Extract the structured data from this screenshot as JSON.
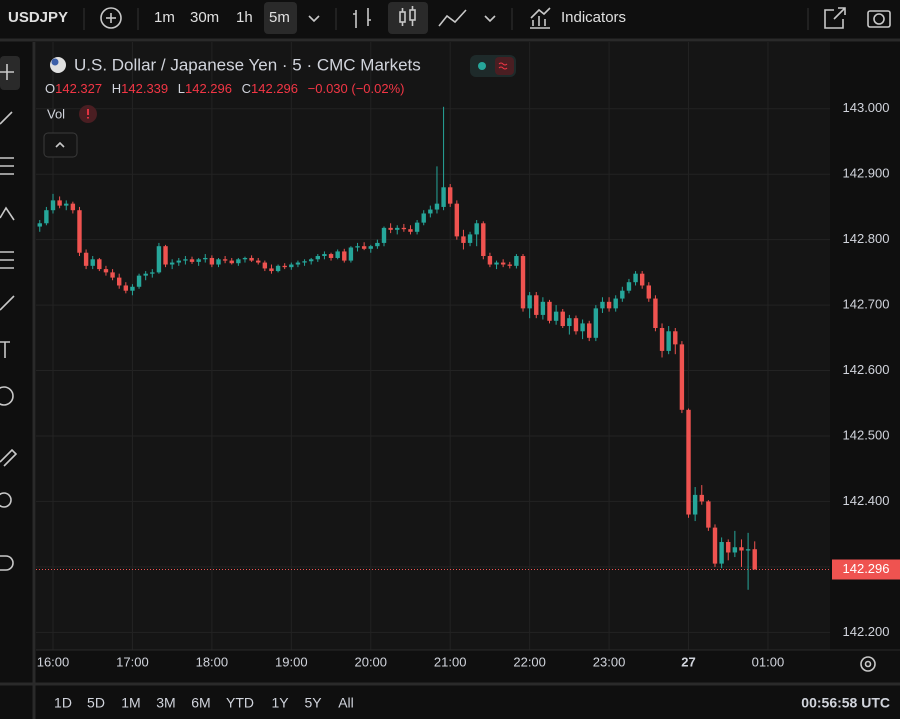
{
  "toolbar": {
    "symbol": "USDJPY",
    "intervals": [
      "1m",
      "30m",
      "1h",
      "5m"
    ],
    "indicators": "Indicators"
  },
  "legend": {
    "title": "U.S. Dollar / Japanese Yen · 5 · CMC Markets",
    "ohlc_labels": [
      "O",
      "H",
      "L",
      "C"
    ],
    "change": "−0.030 (−0.02%)",
    "volume": "Vol"
  },
  "ranges": [
    "1D",
    "5D",
    "1M",
    "3M",
    "6M",
    "YTD",
    "1Y",
    "5Y",
    "All"
  ],
  "clock": "00:56:58 UTC",
  "chart_data": {
    "type": "candlestick",
    "up_color": "#26a69a",
    "down_color": "#ef5350",
    "grid": true,
    "ylim": [
      142.173,
      143.102
    ],
    "yticks": [
      {
        "value": 142.2,
        "label": "142.200"
      },
      {
        "value": 142.3,
        "label": "142.300"
      },
      {
        "value": 142.4,
        "label": "142.400"
      },
      {
        "value": 142.5,
        "label": "142.500"
      },
      {
        "value": 142.6,
        "label": "142.600"
      },
      {
        "value": 142.7,
        "label": "142.700"
      },
      {
        "value": 142.8,
        "label": "142.800"
      },
      {
        "value": 142.9,
        "label": "142.900"
      },
      {
        "value": 143.0,
        "label": "143.000"
      }
    ],
    "categories": [
      null,
      null,
      "16:00",
      null,
      null,
      null,
      null,
      null,
      null,
      null,
      null,
      null,
      null,
      null,
      "17:00",
      null,
      null,
      null,
      null,
      null,
      null,
      null,
      null,
      null,
      null,
      null,
      "18:00",
      null,
      null,
      null,
      null,
      null,
      null,
      null,
      null,
      null,
      null,
      null,
      "19:00",
      null,
      null,
      null,
      null,
      null,
      null,
      null,
      null,
      null,
      null,
      null,
      "20:00",
      null,
      null,
      null,
      null,
      null,
      null,
      null,
      null,
      null,
      null,
      null,
      "21:00",
      null,
      null,
      null,
      null,
      null,
      null,
      null,
      null,
      null,
      null,
      null,
      "22:00",
      null,
      null,
      null,
      null,
      null,
      null,
      null,
      null,
      null,
      null,
      null,
      "23:00",
      null,
      null,
      null,
      null,
      null,
      null,
      null,
      null,
      null,
      null,
      null,
      "27",
      null,
      null,
      null,
      null,
      null,
      null,
      null,
      null,
      null,
      null,
      null,
      "01:00"
    ],
    "ohlc": [
      [
        142.82,
        142.83,
        142.812,
        142.825
      ],
      [
        142.825,
        142.85,
        142.822,
        142.845
      ],
      [
        142.845,
        142.87,
        142.84,
        142.86
      ],
      [
        142.86,
        142.866,
        142.848,
        142.852
      ],
      [
        142.852,
        142.86,
        142.845,
        142.855
      ],
      [
        142.855,
        142.858,
        142.84,
        142.845
      ],
      [
        142.845,
        142.85,
        142.775,
        142.78
      ],
      [
        142.78,
        142.785,
        142.755,
        142.76
      ],
      [
        142.76,
        142.775,
        142.755,
        142.77
      ],
      [
        142.77,
        142.772,
        142.752,
        142.755
      ],
      [
        142.755,
        142.76,
        142.745,
        142.75
      ],
      [
        142.75,
        142.755,
        142.738,
        142.742
      ],
      [
        142.742,
        142.748,
        142.725,
        142.73
      ],
      [
        142.73,
        142.735,
        142.718,
        142.722
      ],
      [
        142.722,
        142.732,
        142.715,
        142.728
      ],
      [
        142.728,
        142.748,
        142.725,
        142.745
      ],
      [
        142.745,
        142.752,
        142.738,
        142.748
      ],
      [
        142.748,
        142.755,
        142.742,
        142.75
      ],
      [
        142.75,
        142.795,
        142.748,
        142.79
      ],
      [
        142.79,
        142.792,
        142.758,
        142.762
      ],
      [
        142.762,
        142.77,
        142.755,
        142.765
      ],
      [
        142.765,
        142.772,
        142.76,
        142.768
      ],
      [
        142.768,
        142.775,
        142.762,
        142.77
      ],
      [
        142.77,
        142.774,
        142.763,
        142.766
      ],
      [
        142.766,
        142.772,
        142.76,
        142.77
      ],
      [
        142.77,
        142.778,
        142.765,
        142.772
      ],
      [
        142.772,
        142.776,
        142.758,
        142.762
      ],
      [
        142.762,
        142.772,
        142.758,
        142.77
      ],
      [
        142.77,
        142.775,
        142.764,
        142.768
      ],
      [
        142.768,
        142.772,
        142.762,
        142.764
      ],
      [
        142.764,
        142.772,
        142.76,
        142.77
      ],
      [
        142.77,
        142.774,
        142.765,
        142.772
      ],
      [
        142.772,
        142.776,
        142.766,
        142.768
      ],
      [
        142.768,
        142.772,
        142.762,
        142.765
      ],
      [
        142.765,
        142.768,
        142.752,
        142.756
      ],
      [
        142.756,
        142.762,
        142.748,
        142.752
      ],
      [
        142.752,
        142.762,
        142.75,
        142.76
      ],
      [
        142.76,
        142.764,
        142.755,
        142.758
      ],
      [
        142.758,
        142.765,
        142.754,
        142.762
      ],
      [
        142.762,
        142.768,
        142.758,
        142.765
      ],
      [
        142.765,
        142.77,
        142.76,
        142.767
      ],
      [
        142.767,
        142.772,
        142.762,
        142.77
      ],
      [
        142.77,
        142.778,
        142.766,
        142.775
      ],
      [
        142.775,
        142.782,
        142.77,
        142.778
      ],
      [
        142.778,
        142.78,
        142.768,
        142.772
      ],
      [
        142.772,
        142.785,
        142.77,
        142.782
      ],
      [
        142.782,
        142.786,
        142.765,
        142.768
      ],
      [
        142.768,
        142.79,
        142.765,
        142.788
      ],
      [
        142.788,
        142.795,
        142.782,
        142.79
      ],
      [
        142.79,
        142.796,
        142.784,
        142.786
      ],
      [
        142.786,
        142.792,
        142.78,
        142.79
      ],
      [
        142.79,
        142.8,
        142.786,
        142.795
      ],
      [
        142.795,
        142.82,
        142.79,
        142.818
      ],
      [
        142.818,
        142.825,
        142.81,
        142.815
      ],
      [
        142.815,
        142.822,
        142.808,
        142.818
      ],
      [
        142.818,
        142.824,
        142.812,
        142.816
      ],
      [
        142.816,
        142.822,
        142.808,
        142.812
      ],
      [
        142.812,
        142.83,
        142.808,
        142.826
      ],
      [
        142.826,
        142.845,
        142.822,
        142.84
      ],
      [
        142.84,
        142.852,
        142.834,
        142.846
      ],
      [
        142.846,
        142.912,
        142.84,
        142.855
      ],
      [
        142.85,
        143.003,
        142.845,
        142.88
      ],
      [
        142.88,
        142.885,
        142.85,
        142.855
      ],
      [
        142.855,
        142.86,
        142.8,
        142.805
      ],
      [
        142.805,
        142.815,
        142.785,
        142.795
      ],
      [
        142.795,
        142.812,
        142.79,
        142.808
      ],
      [
        142.808,
        142.83,
        142.79,
        142.825
      ],
      [
        142.825,
        142.828,
        142.77,
        142.775
      ],
      [
        142.775,
        142.78,
        142.758,
        142.762
      ],
      [
        142.762,
        142.768,
        142.755,
        142.765
      ],
      [
        142.765,
        142.77,
        142.758,
        142.762
      ],
      [
        142.762,
        142.766,
        142.756,
        142.76
      ],
      [
        142.76,
        142.778,
        142.756,
        142.775
      ],
      [
        142.775,
        142.778,
        142.69,
        142.695
      ],
      [
        142.695,
        142.72,
        142.68,
        142.715
      ],
      [
        142.715,
        142.72,
        142.68,
        142.685
      ],
      [
        142.685,
        142.712,
        142.678,
        142.705
      ],
      [
        142.705,
        142.708,
        142.672,
        142.676
      ],
      [
        142.676,
        142.7,
        142.67,
        142.69
      ],
      [
        142.69,
        142.694,
        142.665,
        142.668
      ],
      [
        142.668,
        142.685,
        142.655,
        142.68
      ],
      [
        142.68,
        142.684,
        142.655,
        142.66
      ],
      [
        142.66,
        142.678,
        142.648,
        142.672
      ],
      [
        142.672,
        142.676,
        142.645,
        142.65
      ],
      [
        142.65,
        142.7,
        142.645,
        142.695
      ],
      [
        142.695,
        142.712,
        142.688,
        142.705
      ],
      [
        142.705,
        142.712,
        142.69,
        142.695
      ],
      [
        142.695,
        142.715,
        142.69,
        142.71
      ],
      [
        142.71,
        142.728,
        142.705,
        142.722
      ],
      [
        142.722,
        142.74,
        142.718,
        142.735
      ],
      [
        142.735,
        142.752,
        142.73,
        142.748
      ],
      [
        142.748,
        142.752,
        142.725,
        142.73
      ],
      [
        142.73,
        142.735,
        142.705,
        142.71
      ],
      [
        142.71,
        142.715,
        142.66,
        142.665
      ],
      [
        142.665,
        142.672,
        142.62,
        142.63
      ],
      [
        142.63,
        142.668,
        142.625,
        142.66
      ],
      [
        142.66,
        142.665,
        142.625,
        142.64
      ],
      [
        142.64,
        142.645,
        142.535,
        142.54
      ],
      [
        142.54,
        142.542,
        142.375,
        142.38
      ],
      [
        142.38,
        142.422,
        142.37,
        142.41
      ],
      [
        142.41,
        142.425,
        142.395,
        142.4
      ],
      [
        142.4,
        142.402,
        142.355,
        142.36
      ],
      [
        142.36,
        142.365,
        142.3,
        142.305
      ],
      [
        142.305,
        142.345,
        142.298,
        142.338
      ],
      [
        142.338,
        142.342,
        142.31,
        142.322
      ],
      [
        142.322,
        142.355,
        142.315,
        142.33
      ],
      [
        142.33,
        142.342,
        142.3,
        142.325
      ],
      [
        142.325,
        142.352,
        142.265,
        142.327
      ],
      [
        142.327,
        142.339,
        142.296,
        142.296
      ],
      null,
      null
    ]
  }
}
